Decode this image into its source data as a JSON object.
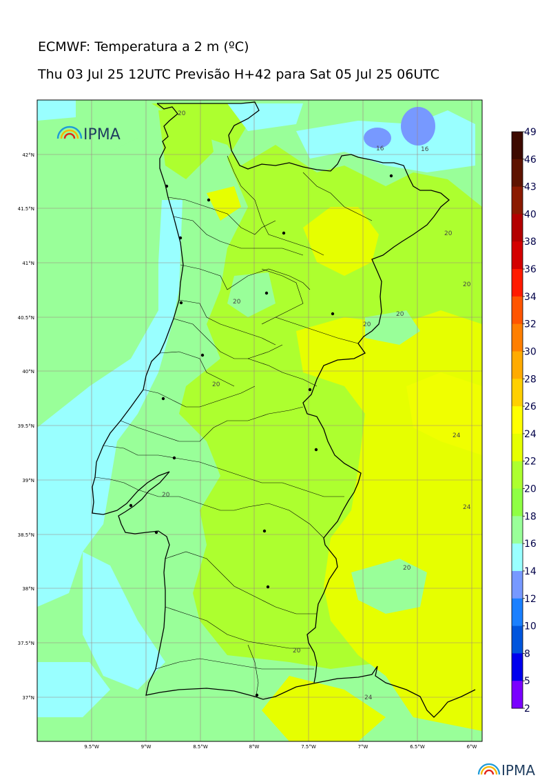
{
  "header": {
    "title": "ECMWF: Temperatura a 2 m (ºC)",
    "subtitle": "Thu 03 Jul 25 12UTC Previsão H+42 para Sat 05 Jul 25 06UTC"
  },
  "logo": {
    "text": "IPMA"
  },
  "footer_logo": {
    "text": "IPMA"
  },
  "map": {
    "lat_labels": [
      "42°N",
      "41.5°N",
      "41°N",
      "40.5°N",
      "40°N",
      "39.5°N",
      "39°N",
      "38.5°N",
      "38°N",
      "37.5°N",
      "37°N"
    ],
    "lon_labels": [
      "9.5°W",
      "9°W",
      "8.5°W",
      "8°W",
      "7.5°W",
      "7°W",
      "6.5°W",
      "6°W"
    ],
    "contour_labels": [
      "20",
      "16",
      "16",
      "20",
      "20",
      "20",
      "20",
      "20",
      "20",
      "24",
      "24",
      "20",
      "20",
      "20",
      "24",
      "20"
    ]
  },
  "colorbar": {
    "levels": [
      "49",
      "46",
      "43",
      "40",
      "38",
      "36",
      "34",
      "32",
      "30",
      "28",
      "26",
      "24",
      "22",
      "20",
      "18",
      "16",
      "14",
      "12",
      "10",
      "8",
      "5",
      "2"
    ],
    "colors": [
      "#3d0a00",
      "#5e1300",
      "#8b1a00",
      "#b30000",
      "#d40000",
      "#ff1a00",
      "#ff5500",
      "#ff7f00",
      "#ffab00",
      "#ffd000",
      "#ffff00",
      "#e6ff00",
      "#adff2f",
      "#8fff44",
      "#99ff99",
      "#99ffff",
      "#7799ff",
      "#1a80ff",
      "#0055dd",
      "#0000ee",
      "#7a00ff",
      "#dd00ff"
    ]
  }
}
